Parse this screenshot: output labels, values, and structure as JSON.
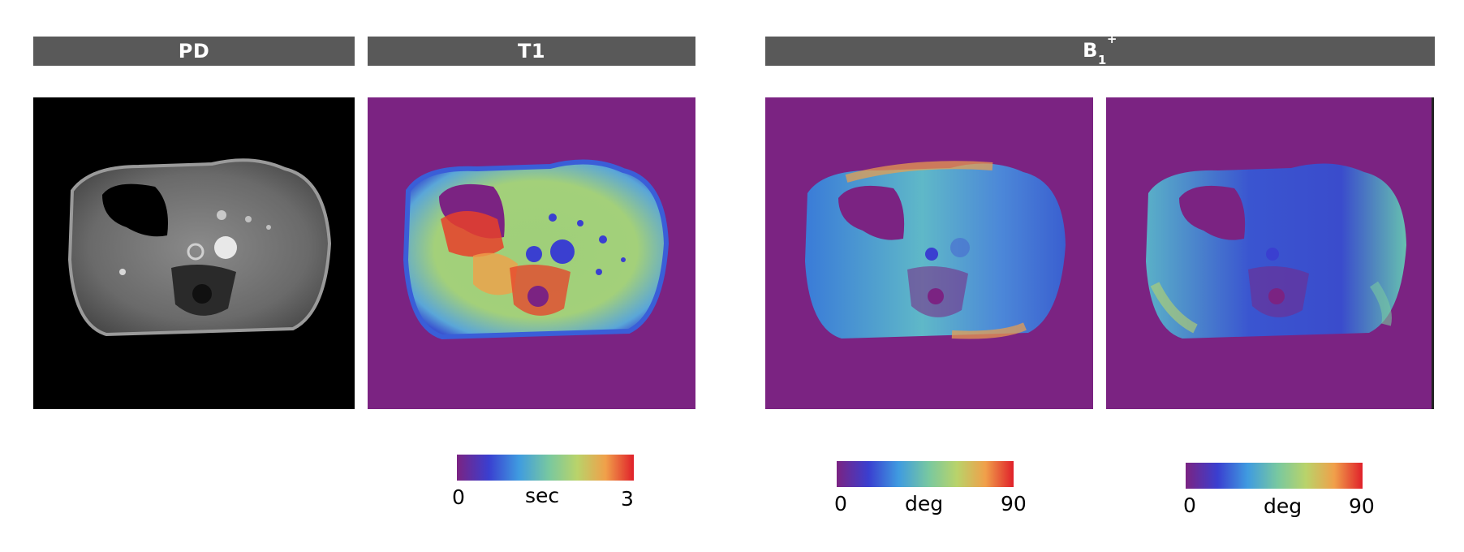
{
  "headers": {
    "pd": "PD",
    "t1": "T1",
    "b1_main": "B",
    "b1_sub": "1",
    "b1_sup": "+"
  },
  "colorbars": {
    "t1": {
      "min": "0",
      "unit": "sec",
      "max": "3"
    },
    "b1_left": {
      "min": "0",
      "unit": "deg",
      "max": "90"
    },
    "b1_right": {
      "min": "0",
      "unit": "deg",
      "max": "90"
    }
  },
  "colors": {
    "header_bg": "#595959",
    "map_background": "#7b2382",
    "pd_background": "#000000"
  },
  "images": [
    {
      "name": "pd-map",
      "description_icon": "mri-grayscale-image"
    },
    {
      "name": "t1-map",
      "description_icon": "mri-colormap-image"
    },
    {
      "name": "b1-map-left",
      "description_icon": "mri-colormap-image"
    },
    {
      "name": "b1-map-right",
      "description_icon": "mri-colormap-image"
    }
  ]
}
